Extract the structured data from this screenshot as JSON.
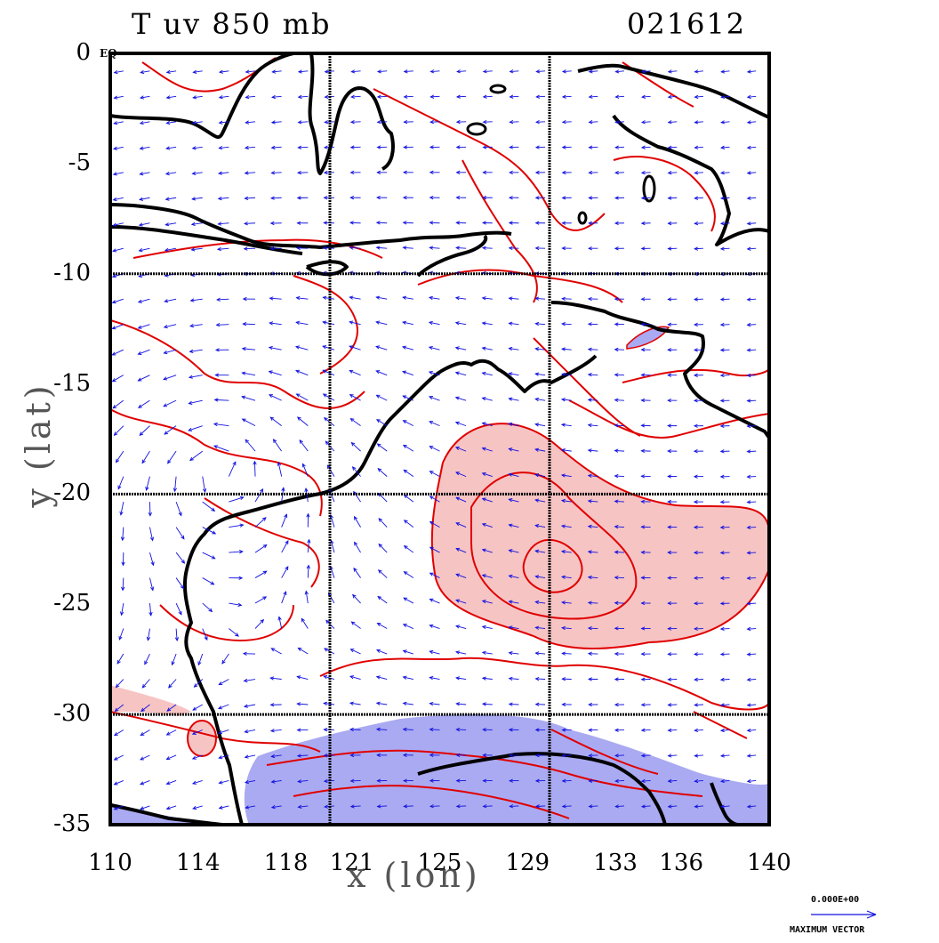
{
  "title": {
    "left": "T uv 850 mb",
    "right": "021612"
  },
  "axes": {
    "xlabel": "x (lon)",
    "ylabel": "y (lat)",
    "xticks": [
      "110",
      "114",
      "118",
      "121",
      "125",
      "129",
      "133",
      "136",
      "140"
    ],
    "yticks": [
      "0",
      "-5",
      "-10",
      "-15",
      "-20",
      "-25",
      "-30",
      "-35"
    ],
    "y_zero_tag": "EQ",
    "xlim": [
      110,
      140
    ],
    "ylim": [
      -35,
      0
    ]
  },
  "reference_vector": {
    "value": "0.000E+00",
    "label": "MAXIMUM VECTOR"
  },
  "colors": {
    "coastline": "#000000",
    "contour": "#e00000",
    "vector": "#1010e0",
    "warm_fill": "#f7c4c4",
    "cold_fill": "#aaaaf2",
    "grid": "#000000"
  },
  "features": {
    "warm_anomaly_center": [
      128,
      -22
    ],
    "cold_anomaly_region": "southern coast -30 to -35",
    "cyclonic_circulation_center": [
      115,
      -19
    ]
  }
}
